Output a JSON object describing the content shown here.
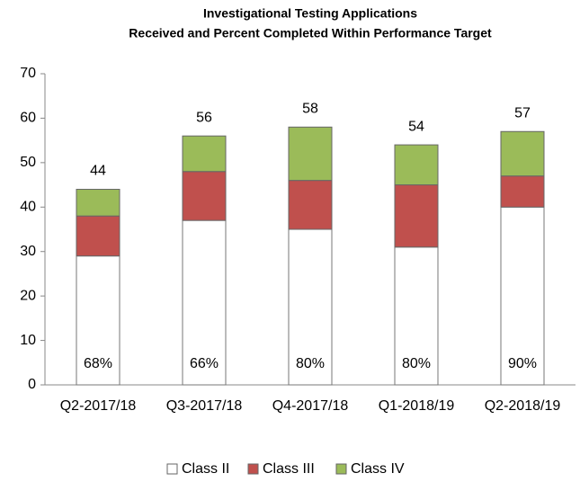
{
  "chart_data": {
    "type": "stacked_bar",
    "title": "Investigational Testing Applications",
    "subtitle": "Received and Percent Completed Within Performance Target",
    "categories": [
      "Q2-2017/18",
      "Q3-2017/18",
      "Q4-2017/18",
      "Q1-2018/19",
      "Q2-2018/19"
    ],
    "series": [
      {
        "name": "Class II",
        "color": "#ffffff",
        "values": [
          29,
          37,
          35,
          31,
          40
        ]
      },
      {
        "name": "Class III",
        "color": "#c0504d",
        "values": [
          9,
          11,
          11,
          14,
          7
        ]
      },
      {
        "name": "Class IV",
        "color": "#9bbb59",
        "values": [
          6,
          8,
          12,
          9,
          10
        ]
      }
    ],
    "totals": [
      44,
      56,
      58,
      54,
      57
    ],
    "percent_completed": {
      "values": [
        68,
        66,
        80,
        80,
        90
      ],
      "value_labels": [
        "68%",
        "66%",
        "80%",
        "80%",
        "90%"
      ]
    },
    "ylim": [
      0,
      70
    ],
    "yticks": [
      0,
      10,
      20,
      30,
      40,
      50,
      60,
      70
    ],
    "grid": false,
    "legend": "bottom"
  }
}
